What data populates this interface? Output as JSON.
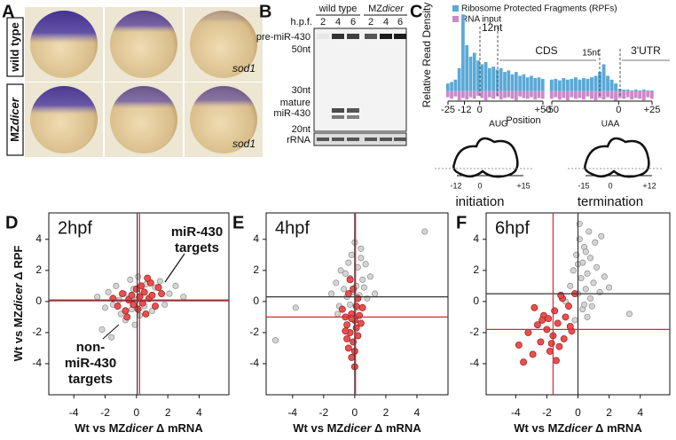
{
  "figure": {
    "panel_a": {
      "label": "A",
      "rows": [
        [
          "wild type"
        ],
        [
          "MZ",
          "dicer"
        ]
      ],
      "gene_labels": [
        "sod1",
        "sod1"
      ]
    },
    "panel_b": {
      "label": "B",
      "groups": [
        [
          "wild type"
        ],
        [
          "MZ",
          "dicer"
        ]
      ],
      "hpf_label": "h.p.f.",
      "lanes": [
        2,
        4,
        6,
        2,
        4,
        6
      ],
      "markers": [
        "pre-miR-430",
        "50nt",
        "30nt",
        "mature",
        "miR-430",
        "20nt",
        "rRNA"
      ]
    },
    "panel_c_schematic": {
      "initiation": {
        "label": "initiation",
        "positions": [
          "-12",
          "0",
          "+15"
        ]
      },
      "termination": {
        "label": "termination",
        "positions": [
          "-15",
          "0",
          "+12"
        ]
      }
    }
  },
  "chart_data": [
    {
      "type": "bar",
      "label": "C",
      "y_label": "Relative Read Density",
      "x_label": "Position",
      "legend": [
        {
          "name": "Ribosome Protected Fragments (RPFs)",
          "color": "#5aa9d6"
        },
        {
          "name": "RNA input",
          "color": "#c98bc9"
        }
      ],
      "ylim": [
        -0.2,
        1.05
      ],
      "annotations": [
        "12nt",
        "CDS",
        "15nt",
        "3'UTR",
        "AUG",
        "UAA"
      ],
      "segments": [
        {
          "xlim": [
            -25,
            50
          ],
          "xticks": [
            -25,
            -12,
            0,
            {
              "value": 50,
              "label": "+50"
            }
          ],
          "x": [
            -25,
            -22,
            -19,
            -16,
            -13,
            -10,
            -7,
            -4,
            -1,
            2,
            5,
            8,
            11,
            14,
            17,
            20,
            23,
            26,
            29,
            32,
            35,
            38,
            41,
            44,
            47,
            50
          ],
          "series": [
            {
              "values": [
                0.1,
                0.12,
                0.15,
                0.3,
                1.0,
                0.6,
                0.45,
                0.5,
                0.4,
                0.35,
                0.38,
                0.3,
                0.32,
                0.28,
                0.3,
                0.25,
                0.27,
                0.22,
                0.25,
                0.2,
                0.22,
                0.18,
                0.2,
                0.17,
                0.18,
                0.16
              ]
            },
            {
              "values": [
                -0.08,
                -0.1,
                -0.07,
                -0.12,
                -0.09,
                -0.11,
                -0.08,
                -0.1,
                -0.06,
                -0.09,
                -0.12,
                -0.08,
                -0.1,
                -0.07,
                -0.11,
                -0.09,
                -0.08,
                -0.1,
                -0.12,
                -0.07,
                -0.09,
                -0.1,
                -0.08,
                -0.11,
                -0.09,
                -0.1
              ]
            }
          ]
        },
        {
          "xlim": [
            -50,
            25
          ],
          "xticks": [
            -50,
            0,
            {
              "value": 25,
              "label": "+25"
            }
          ],
          "x": [
            -50,
            -47,
            -44,
            -41,
            -38,
            -35,
            -32,
            -29,
            -26,
            -23,
            -20,
            -17,
            -14,
            -11,
            -8,
            -5,
            -2,
            1,
            4,
            7,
            10,
            13,
            16,
            19,
            22,
            25
          ],
          "series": [
            {
              "values": [
                0.15,
                0.16,
                0.14,
                0.17,
                0.15,
                0.16,
                0.18,
                0.15,
                0.17,
                0.16,
                0.18,
                0.2,
                0.25,
                0.35,
                0.2,
                0.15,
                0.1,
                0.03,
                0.02,
                0.02,
                0.01,
                0.02,
                0.01,
                0.02,
                0.01,
                0.01
              ]
            },
            {
              "values": [
                -0.1,
                -0.08,
                -0.11,
                -0.09,
                -0.12,
                -0.08,
                -0.1,
                -0.09,
                -0.11,
                -0.07,
                -0.1,
                -0.12,
                -0.09,
                -0.11,
                -0.08,
                -0.1,
                -0.13,
                -0.09,
                -0.1,
                -0.08,
                -0.11,
                -0.09,
                -0.1,
                -0.12,
                -0.08,
                -0.1
              ]
            }
          ]
        }
      ]
    },
    {
      "type": "scatter",
      "label": "D",
      "title": "2hpf",
      "xlim": [
        -5.6,
        5.9
      ],
      "ylim": [
        -6,
        5.7
      ],
      "xticks": [
        -4,
        -2,
        0,
        2,
        4
      ],
      "yticks": [
        4,
        2,
        0,
        -2,
        -4
      ],
      "x_label": [
        "Wt vs MZ",
        "dicer",
        " Δ mRNA"
      ],
      "y_label": [
        "Wt vs MZ",
        "dicer",
        " Δ RPF"
      ],
      "annotations": [
        {
          "lines": [
            "miR-430",
            "targets"
          ],
          "color": "#d62b35"
        },
        {
          "lines": [
            "non-",
            "miR-430",
            "targets"
          ],
          "color": "#999999"
        }
      ],
      "ref_lines": [
        {
          "axis": "x",
          "value": 0.05,
          "color": "#333333"
        },
        {
          "axis": "y",
          "value": 0.05,
          "color": "#333333"
        },
        {
          "axis": "x",
          "value": 0.2,
          "color": "#d62b35"
        },
        {
          "axis": "y",
          "value": 0.1,
          "color": "#d62b35"
        }
      ],
      "series": [
        {
          "color": "#d4d4d4",
          "x": [
            -2.5,
            -2,
            -1.8,
            -1.5,
            -1.3,
            -1.1,
            -1,
            -0.8,
            -0.7,
            -0.5,
            -0.4,
            -0.3,
            -0.2,
            -0.1,
            0,
            0.1,
            0.2,
            0.3,
            0.5,
            0.6,
            0.8,
            1,
            1.2,
            1.5,
            1.8,
            2.1,
            2.5,
            3,
            -2.2,
            -1.6
          ],
          "y": [
            0.3,
            -0.4,
            0.6,
            -0.2,
            1,
            0.1,
            -0.8,
            0.5,
            -1.2,
            0.2,
            1.4,
            -0.5,
            0.8,
            -1.5,
            0.1,
            1.6,
            -0.9,
            0.4,
            -0.3,
            1.1,
            0.2,
            -0.6,
            0.9,
            1.3,
            -0.2,
            0.5,
            1,
            0.3,
            -1.8,
            -2.3
          ]
        },
        {
          "color": "#e8504f",
          "x": [
            -1.5,
            -1.2,
            -0.9,
            -0.7,
            -0.5,
            -0.3,
            -0.2,
            0,
            0.1,
            0.2,
            0.3,
            0.4,
            0.5,
            0.6,
            0.8,
            0.9,
            1,
            1.2,
            1.4,
            1.6,
            -0.6,
            0.7
          ],
          "y": [
            0.2,
            -0.3,
            0.5,
            -0.6,
            0.1,
            0.4,
            -0.2,
            0.8,
            -0.5,
            0.3,
            1,
            -0.1,
            0.6,
            -0.8,
            0.2,
            1.2,
            0.4,
            -0.3,
            0.9,
            0.5,
            -1,
            1.5
          ]
        }
      ]
    },
    {
      "type": "scatter",
      "label": "E",
      "title": "4hpf",
      "xlim": [
        -5.7,
        6
      ],
      "ylim": [
        -6,
        5.7
      ],
      "xticks": [
        -4,
        -2,
        0,
        2,
        4
      ],
      "yticks": [
        4,
        2,
        0,
        -2,
        -4
      ],
      "x_label": [
        "Wt vs MZ",
        "dicer",
        " Δ mRNA"
      ],
      "ref_lines": [
        {
          "axis": "x",
          "value": 0,
          "color": "#333333"
        },
        {
          "axis": "y",
          "value": 0.3,
          "color": "#333333"
        },
        {
          "axis": "x",
          "value": 0.05,
          "color": "#d62b35"
        },
        {
          "axis": "y",
          "value": -1,
          "color": "#d62b35"
        }
      ],
      "series": [
        {
          "color": "#d4d4d4",
          "x": [
            -1.5,
            -1.2,
            -1,
            -0.9,
            -0.7,
            -0.6,
            -0.5,
            -0.4,
            -0.3,
            -0.2,
            -0.1,
            0,
            0.1,
            0.2,
            0.3,
            0.4,
            0.5,
            0.6,
            0.8,
            1,
            1.3,
            -0.8,
            -0.3,
            0.2,
            0.7,
            -5.1,
            -3.8,
            4.5,
            -1.1,
            0.4
          ],
          "y": [
            0.5,
            1.2,
            -0.3,
            2,
            0.8,
            1.8,
            0.3,
            2.5,
            1.5,
            3,
            0.6,
            3.8,
            1,
            2.2,
            0.4,
            2.8,
            1.4,
            0.9,
            0.2,
            1.6,
            0.5,
            -0.5,
            -0.2,
            -0.4,
            2.4,
            -2.5,
            -0.4,
            4.5,
            -0.8,
            3.4
          ]
        },
        {
          "color": "#e8504f",
          "x": [
            -0.8,
            -0.6,
            -0.5,
            -0.4,
            -0.3,
            -0.2,
            -0.1,
            0,
            0.1,
            0.2,
            0.3,
            0.5,
            -0.4,
            -0.2,
            0,
            0.2,
            -0.6,
            -0.1,
            0.1,
            -0.3,
            0.4,
            -0.5,
            0,
            -0.2
          ],
          "y": [
            -0.5,
            -1,
            -1.5,
            0.5,
            -2,
            -0.8,
            -2.6,
            -1.2,
            -1.7,
            0.2,
            -0.9,
            -0.4,
            -3,
            -3.6,
            -4.2,
            -2.2,
            -1.9,
            0.8,
            -0.3,
            1.4,
            -1.4,
            -2.4,
            -3.2,
            -1.1
          ]
        }
      ]
    },
    {
      "type": "scatter",
      "label": "F",
      "title": "6hpf",
      "xlim": [
        -5.9,
        5.9
      ],
      "ylim": [
        -6,
        5.7
      ],
      "xticks": [
        -4,
        -2,
        0,
        2,
        4
      ],
      "yticks": [
        4,
        2,
        0,
        -2,
        -4
      ],
      "x_label": [
        "Wt vs MZ",
        "dicer",
        " Δ mRNA"
      ],
      "ref_lines": [
        {
          "axis": "x",
          "value": 0,
          "color": "#333333"
        },
        {
          "axis": "y",
          "value": 0.5,
          "color": "#333333"
        },
        {
          "axis": "x",
          "value": -1.6,
          "color": "#d62b35"
        },
        {
          "axis": "y",
          "value": -1.8,
          "color": "#d62b35"
        }
      ],
      "series": [
        {
          "color": "#d4d4d4",
          "x": [
            -0.5,
            -0.3,
            -0.1,
            0,
            0.1,
            0.2,
            0.3,
            0.4,
            0.5,
            0.6,
            0.7,
            0.8,
            1,
            1.2,
            1.4,
            1.7,
            2,
            0.3,
            0.6,
            0.9,
            -0.2,
            0.1,
            0.5,
            1.1,
            0,
            0.4,
            3.3,
            -0.8,
            1.5,
            0.8
          ],
          "y": [
            1,
            2,
            3,
            0.5,
            4,
            1.5,
            2.5,
            3.5,
            0.8,
            1.8,
            4.5,
            2.8,
            1.2,
            2.2,
            0.6,
            1.6,
            0.9,
            -0.5,
            -1,
            -0.3,
            -1.2,
            5,
            3.2,
            3.8,
            2.4,
            -0.2,
            -0.8,
            0,
            4.2,
            0.2
          ]
        },
        {
          "color": "#e8504f",
          "x": [
            -3.8,
            -3.2,
            -2.9,
            -2.6,
            -2.4,
            -2.2,
            -2,
            -1.8,
            -1.6,
            -1.5,
            -1.3,
            -1.2,
            -1,
            -0.8,
            -0.6,
            -0.4,
            -0.2,
            -2.8,
            -1.9,
            -1.4,
            -0.9,
            -3.5,
            -2.3,
            -1.7,
            -1.1,
            -0.5
          ],
          "y": [
            -2.8,
            -2,
            -3.4,
            -1.5,
            -2.6,
            -0.9,
            -1.8,
            -3.2,
            -2.2,
            -0.6,
            -1.4,
            -2.9,
            0.2,
            -1,
            -0.3,
            -1.9,
            0.5,
            -0.4,
            -1.1,
            -3.8,
            -2.4,
            -3.9,
            -1.2,
            -2.7,
            0.4,
            -1.6
          ]
        }
      ]
    }
  ]
}
